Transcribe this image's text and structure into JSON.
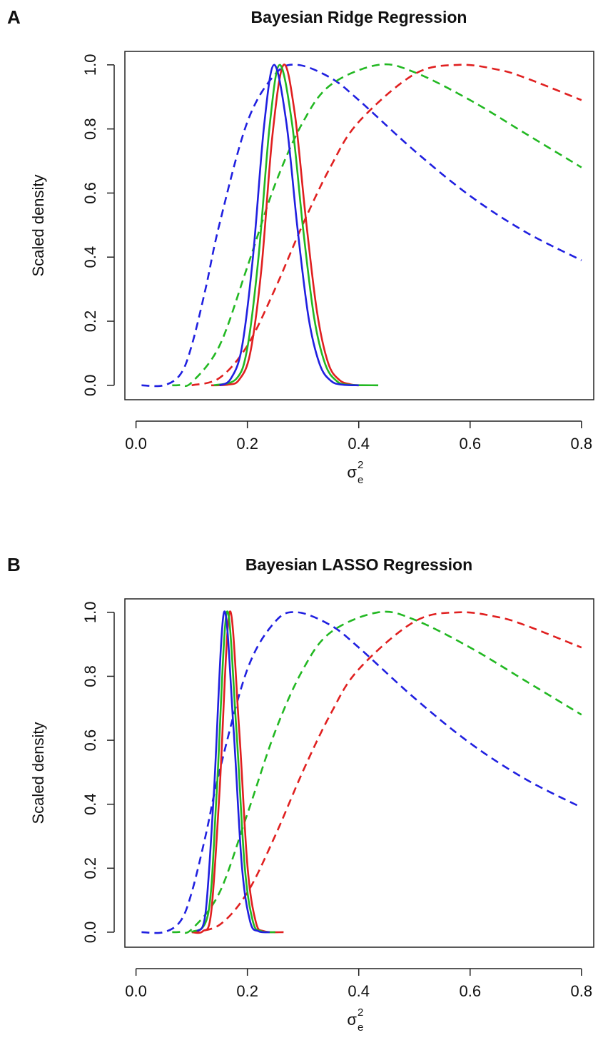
{
  "chart_data": [
    {
      "type": "line",
      "panel_label": "A",
      "title": "Bayesian Ridge Regression",
      "y_label": "Scaled density",
      "x_label": "σ",
      "x_label_sup": "2",
      "x_label_sub": "e",
      "xlim": [
        -0.02,
        0.822
      ],
      "ylim": [
        -0.045,
        1.042
      ],
      "xticks": [
        {
          "value": 0,
          "label": "0.0"
        },
        0.2,
        0.4,
        0.6,
        0.8
      ],
      "yticks": [
        {
          "value": 0,
          "label": "0.0"
        },
        0.2,
        0.4,
        0.6,
        0.8,
        {
          "value": 1,
          "label": "1.0"
        }
      ],
      "series": [
        {
          "color": "#2020e0",
          "dash": true,
          "x": [
            0.01,
            0.05,
            0.08,
            0.1,
            0.125,
            0.15,
            0.2,
            0.25,
            0.29,
            0.35,
            0.4,
            0.5,
            0.6,
            0.7,
            0.8
          ],
          "values": [
            0,
            0,
            0.035,
            0.124,
            0.302,
            0.504,
            0.822,
            0.971,
            1,
            0.959,
            0.89,
            0.732,
            0.591,
            0.478,
            0.39
          ]
        },
        {
          "color": "#22b822",
          "dash": true,
          "x": [
            0.065,
            0.08,
            0.1,
            0.15,
            0.2,
            0.25,
            0.3,
            0.35,
            0.435,
            0.5,
            0.6,
            0.7,
            0.8
          ],
          "values": [
            0,
            0.001,
            0.009,
            0.124,
            0.37,
            0.628,
            0.822,
            0.938,
            1,
            0.977,
            0.89,
            0.785,
            0.68
          ]
        },
        {
          "color": "#e02020",
          "dash": true,
          "x": [
            0.1,
            0.15,
            0.2,
            0.25,
            0.3,
            0.35,
            0.4,
            0.5,
            0.58,
            0.65,
            0.7,
            0.8
          ],
          "values": [
            0,
            0.023,
            0.124,
            0.302,
            0.504,
            0.684,
            0.822,
            0.971,
            1,
            0.985,
            0.959,
            0.89
          ]
        },
        {
          "color": "#e02020",
          "dash": false,
          "x": [
            0.135,
            0.165,
            0.185,
            0.205,
            0.225,
            0.245,
            0.265,
            0.285,
            0.305,
            0.325,
            0.345,
            0.365,
            0.385,
            0.4
          ],
          "values": [
            0,
            0.002,
            0.017,
            0.1,
            0.36,
            0.78,
            1,
            0.85,
            0.52,
            0.23,
            0.07,
            0.017,
            0.003,
            0
          ]
        },
        {
          "color": "#22b822",
          "dash": false,
          "x": [
            0.14,
            0.18,
            0.2,
            0.22,
            0.24,
            0.258,
            0.28,
            0.3,
            0.32,
            0.34,
            0.36,
            0.38,
            0.435
          ],
          "values": [
            0,
            0.02,
            0.117,
            0.4,
            0.81,
            1,
            0.82,
            0.49,
            0.21,
            0.065,
            0.014,
            0.002,
            0
          ]
        },
        {
          "color": "#2020e0",
          "dash": false,
          "x": [
            0.15,
            0.17,
            0.19,
            0.21,
            0.23,
            0.248,
            0.27,
            0.29,
            0.31,
            0.33,
            0.35,
            0.37,
            0.4
          ],
          "values": [
            0,
            0.02,
            0.117,
            0.4,
            0.81,
            1,
            0.82,
            0.49,
            0.21,
            0.065,
            0.014,
            0.002,
            0
          ]
        }
      ]
    },
    {
      "type": "line",
      "panel_label": "B",
      "title": "Bayesian LASSO Regression",
      "y_label": "Scaled density",
      "x_label": "σ",
      "x_label_sup": "2",
      "x_label_sub": "e",
      "xlim": [
        -0.02,
        0.822
      ],
      "ylim": [
        -0.047,
        1.042
      ],
      "xticks": [
        {
          "value": 0,
          "label": "0.0"
        },
        0.2,
        0.4,
        0.6,
        0.8
      ],
      "yticks": [
        {
          "value": 0,
          "label": "0.0"
        },
        0.2,
        0.4,
        0.6,
        0.8,
        {
          "value": 1,
          "label": "1.0"
        }
      ],
      "series": [
        {
          "color": "#2020e0",
          "dash": true,
          "x": [
            0.01,
            0.05,
            0.08,
            0.1,
            0.125,
            0.15,
            0.2,
            0.25,
            0.29,
            0.35,
            0.4,
            0.5,
            0.6,
            0.7,
            0.8
          ],
          "values": [
            0,
            0,
            0.035,
            0.124,
            0.302,
            0.504,
            0.822,
            0.971,
            1,
            0.959,
            0.89,
            0.732,
            0.591,
            0.478,
            0.39
          ]
        },
        {
          "color": "#22b822",
          "dash": true,
          "x": [
            0.065,
            0.08,
            0.1,
            0.15,
            0.2,
            0.25,
            0.3,
            0.35,
            0.435,
            0.5,
            0.6,
            0.7,
            0.8
          ],
          "values": [
            0,
            0.001,
            0.009,
            0.124,
            0.37,
            0.628,
            0.822,
            0.938,
            1,
            0.977,
            0.89,
            0.785,
            0.68
          ]
        },
        {
          "color": "#e02020",
          "dash": true,
          "x": [
            0.1,
            0.15,
            0.2,
            0.25,
            0.3,
            0.35,
            0.4,
            0.5,
            0.58,
            0.65,
            0.7,
            0.8
          ],
          "values": [
            0,
            0.023,
            0.124,
            0.302,
            0.504,
            0.684,
            0.822,
            0.971,
            1,
            0.985,
            0.959,
            0.89
          ]
        },
        {
          "color": "#e02020",
          "dash": false,
          "x": [
            0.1,
            0.12,
            0.135,
            0.15,
            0.168,
            0.185,
            0.2,
            0.215,
            0.23,
            0.265
          ],
          "values": [
            0,
            0.003,
            0.062,
            0.44,
            1,
            0.64,
            0.21,
            0.033,
            0.003,
            0
          ]
        },
        {
          "color": "#22b822",
          "dash": false,
          "x": [
            0.1,
            0.13,
            0.145,
            0.163,
            0.18,
            0.195,
            0.21,
            0.225,
            0.25
          ],
          "values": [
            0,
            0.062,
            0.44,
            1,
            0.64,
            0.21,
            0.033,
            0.003,
            0
          ]
        },
        {
          "color": "#2020e0",
          "dash": false,
          "x": [
            0.11,
            0.125,
            0.14,
            0.158,
            0.175,
            0.19,
            0.205,
            0.22,
            0.24
          ],
          "values": [
            0.003,
            0.062,
            0.44,
            1,
            0.64,
            0.21,
            0.033,
            0.003,
            0
          ]
        }
      ]
    }
  ]
}
